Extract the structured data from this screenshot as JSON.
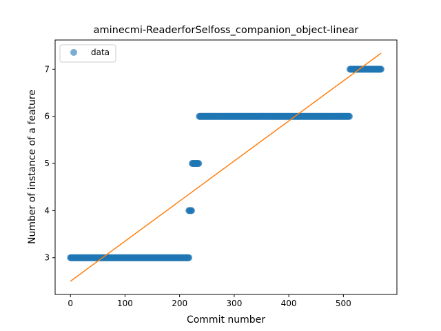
{
  "chart_data": {
    "type": "scatter",
    "title": "aminecmi-ReaderforSelfoss_companion_object-linear",
    "xlabel": "Commit number",
    "ylabel": "Number of instance of a feature",
    "xlim": [
      -28,
      598
    ],
    "ylim": [
      2.22,
      7.62
    ],
    "xticks": [
      0,
      100,
      200,
      300,
      400,
      500
    ],
    "yticks": [
      3,
      4,
      5,
      6,
      7
    ],
    "grid": false,
    "legend": {
      "position": "top-left",
      "entries": [
        "data"
      ]
    },
    "series": [
      {
        "name": "data",
        "kind": "points",
        "color": "#1f77b4",
        "segments": [
          {
            "x_start": 0,
            "x_end": 217,
            "y": 3
          },
          {
            "x_start": 217,
            "x_end": 222,
            "y": 4
          },
          {
            "x_start": 223,
            "x_end": 235,
            "y": 5
          },
          {
            "x_start": 236,
            "x_end": 511,
            "y": 6
          },
          {
            "x_start": 512,
            "x_end": 569,
            "y": 7
          }
        ]
      },
      {
        "kind": "line",
        "color": "#ff7f0e",
        "x": [
          0,
          569
        ],
        "y": [
          2.5,
          7.34
        ]
      }
    ]
  }
}
